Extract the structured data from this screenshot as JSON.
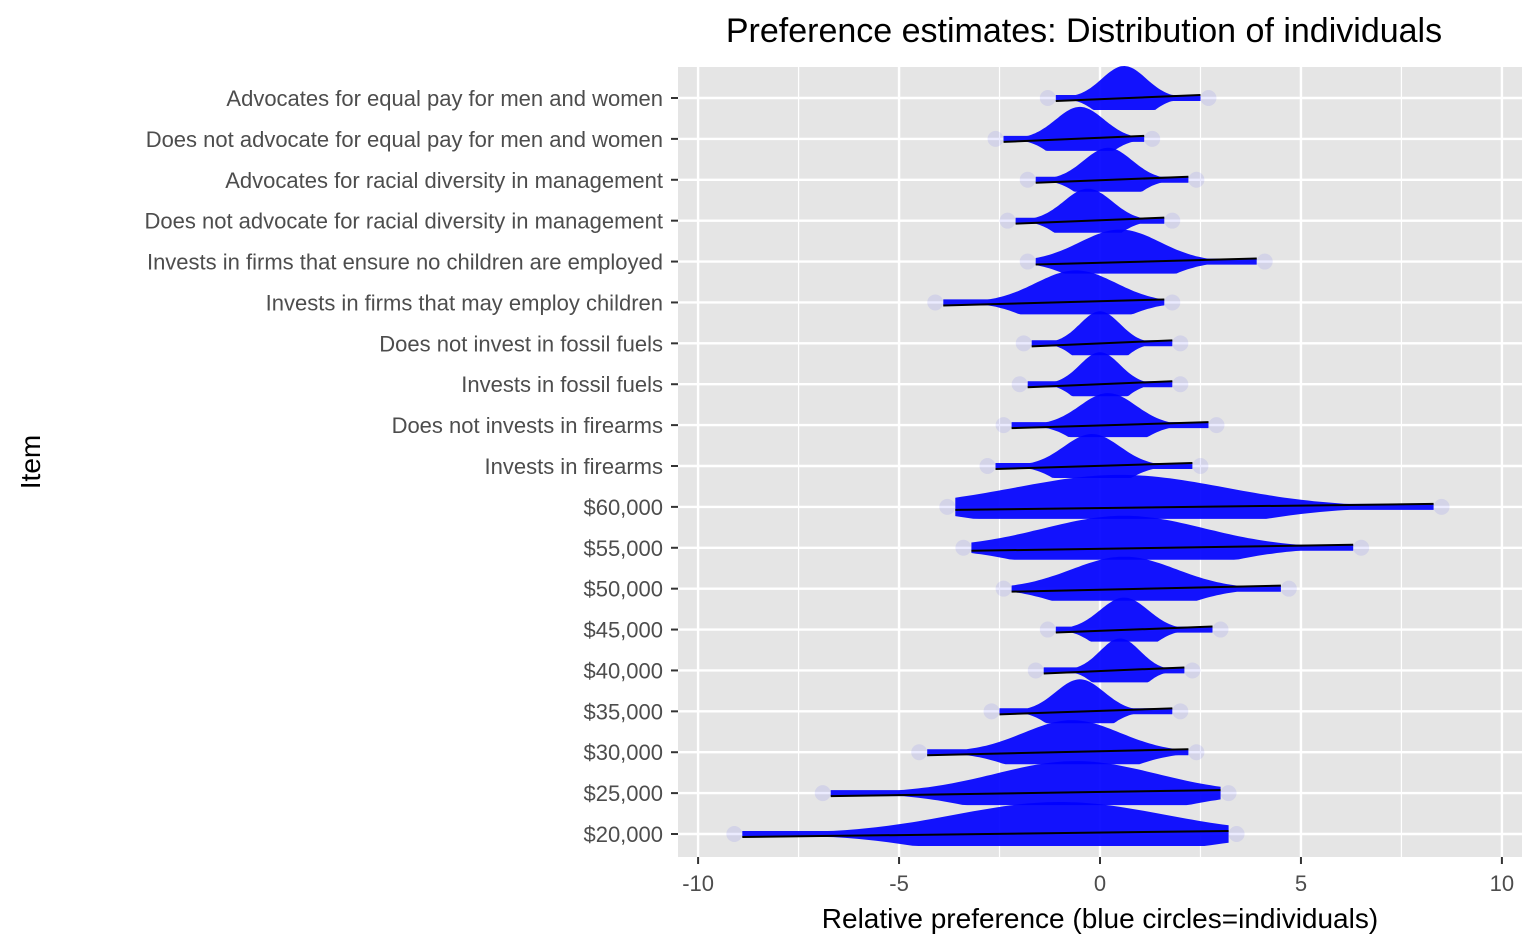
{
  "chart_data": {
    "type": "violin",
    "title": "Preference estimates: Distribution of individuals",
    "xlabel": "Relative preference (blue circles=individuals)",
    "ylabel": "Item",
    "xlim": [
      -10.5,
      10.5
    ],
    "x_ticks": [
      -10,
      -5,
      0,
      5,
      10
    ],
    "x_tick_labels": [
      "-10",
      "-5",
      "0",
      "5",
      "10"
    ],
    "grid": true,
    "colors": {
      "points": "#0000ff",
      "range_line": "#000000",
      "panel": "#e5e5e5",
      "grid": "#ffffff"
    },
    "items": [
      {
        "label": "Advocates for equal pay for men and women",
        "lo": -1.1,
        "hi": 2.5,
        "peak": 0.6,
        "spread": 0.55
      },
      {
        "label": "Does not advocate for equal pay for men and women",
        "lo": -2.4,
        "hi": 1.1,
        "peak": -0.5,
        "spread": 0.6
      },
      {
        "label": "Advocates for racial diversity in management",
        "lo": -1.6,
        "hi": 2.2,
        "peak": 0.2,
        "spread": 0.6
      },
      {
        "label": "Does not advocate for racial diversity in management",
        "lo": -2.1,
        "hi": 1.6,
        "peak": -0.3,
        "spread": 0.6
      },
      {
        "label": "Invests in firms that ensure no children are employed",
        "lo": -1.6,
        "hi": 3.9,
        "peak": 0.5,
        "spread": 1.0
      },
      {
        "label": "Invests in firms that may employ children",
        "lo": -3.9,
        "hi": 1.6,
        "peak": -0.6,
        "spread": 1.0
      },
      {
        "label": "Does not invest in fossil fuels",
        "lo": -1.7,
        "hi": 1.8,
        "peak": 0.0,
        "spread": 0.5
      },
      {
        "label": "Invests in fossil fuels",
        "lo": -1.8,
        "hi": 1.8,
        "peak": 0.0,
        "spread": 0.5
      },
      {
        "label": "Does not invests in firearms",
        "lo": -2.2,
        "hi": 2.7,
        "peak": 0.2,
        "spread": 0.7
      },
      {
        "label": "Invests in firearms",
        "lo": -2.6,
        "hi": 2.3,
        "peak": -0.2,
        "spread": 0.7
      },
      {
        "label": "$60,000",
        "lo": -3.6,
        "hi": 8.3,
        "peak": 0.5,
        "spread": 2.6
      },
      {
        "label": "$55,000",
        "lo": -3.2,
        "hi": 6.3,
        "peak": 0.6,
        "spread": 2.0
      },
      {
        "label": "$50,000",
        "lo": -2.2,
        "hi": 4.5,
        "peak": 0.6,
        "spread": 1.3
      },
      {
        "label": "$45,000",
        "lo": -1.1,
        "hi": 2.8,
        "peak": 0.6,
        "spread": 0.6
      },
      {
        "label": "$40,000",
        "lo": -1.4,
        "hi": 2.1,
        "peak": 0.5,
        "spread": 0.5
      },
      {
        "label": "$35,000",
        "lo": -2.5,
        "hi": 1.8,
        "peak": -0.5,
        "spread": 0.6
      },
      {
        "label": "$30,000",
        "lo": -4.3,
        "hi": 2.2,
        "peak": -0.7,
        "spread": 1.2
      },
      {
        "label": "$25,000",
        "lo": -6.7,
        "hi": 3.0,
        "peak": -0.6,
        "spread": 2.0
      },
      {
        "label": "$20,000",
        "lo": -8.9,
        "hi": 3.2,
        "peak": -1.0,
        "spread": 2.6
      }
    ]
  }
}
